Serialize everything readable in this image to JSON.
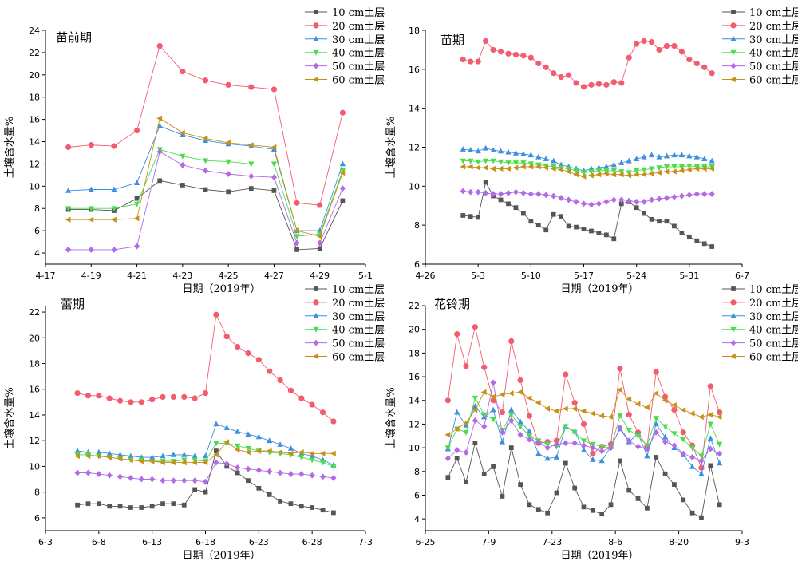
{
  "figure": {
    "series_names": [
      "10 cm土层",
      "20 cm土层",
      "30 cm土层",
      "40 cm土层",
      "50 cm土层",
      "60 cm土层"
    ],
    "series_colors": [
      "#555555",
      "#f25c70",
      "#3d8fe0",
      "#49dd49",
      "#b36ae6",
      "#c79018"
    ],
    "series_markers": [
      "square",
      "circle",
      "triangle-up",
      "triangle-down",
      "diamond",
      "triangle-left"
    ],
    "xlabel": "日期（2019年）",
    "ylabel": "土壤含水量%"
  },
  "chart_data": [
    {
      "type": "line",
      "title": "苗前期",
      "x_ticks": [
        "4-17",
        "4-19",
        "4-21",
        "4-23",
        "4-25",
        "4-27",
        "4-29",
        "5-1"
      ],
      "y_ticks": [
        "4",
        "6",
        "8",
        "10",
        "12",
        "14",
        "16",
        "18",
        "20",
        "22",
        "24"
      ],
      "xlim": [
        0,
        14
      ],
      "ylim": [
        3,
        24
      ],
      "x": [
        1,
        2,
        3,
        4,
        5,
        6,
        7,
        8,
        9,
        10,
        11,
        12,
        13
      ],
      "series": [
        {
          "name": "10 cm土层",
          "values": [
            7.9,
            7.9,
            7.8,
            8.9,
            10.5,
            10.1,
            9.7,
            9.5,
            9.8,
            9.6,
            4.3,
            4.4,
            8.7
          ]
        },
        {
          "name": "20 cm土层",
          "values": [
            13.5,
            13.7,
            13.6,
            15.0,
            22.6,
            20.3,
            19.5,
            19.1,
            18.9,
            18.7,
            8.5,
            8.3,
            16.6
          ]
        },
        {
          "name": "30 cm土层",
          "values": [
            9.6,
            9.7,
            9.7,
            10.3,
            15.4,
            14.6,
            14.1,
            13.8,
            13.6,
            13.3,
            6.0,
            6.0,
            12.0
          ]
        },
        {
          "name": "40 cm土层",
          "values": [
            8.0,
            8.0,
            8.0,
            8.4,
            13.3,
            12.7,
            12.3,
            12.2,
            12.0,
            12.0,
            5.5,
            5.7,
            11.4
          ]
        },
        {
          "name": "50 cm土层",
          "values": [
            4.3,
            4.3,
            4.3,
            4.6,
            13.1,
            11.9,
            11.4,
            11.1,
            10.9,
            10.8,
            4.9,
            4.9,
            9.8
          ]
        },
        {
          "name": "60 cm土层",
          "values": [
            7.0,
            7.0,
            7.0,
            7.1,
            16.1,
            14.8,
            14.3,
            13.9,
            13.7,
            13.5,
            6.0,
            5.5,
            11.2
          ]
        }
      ]
    },
    {
      "type": "line",
      "title": "苗期",
      "x_ticks": [
        "4-26",
        "5-3",
        "5-10",
        "5-17",
        "5-24",
        "5-31",
        "6-7"
      ],
      "y_ticks": [
        "6",
        "8",
        "10",
        "12",
        "14",
        "16",
        "18"
      ],
      "xlim": [
        0,
        42
      ],
      "ylim": [
        6,
        18
      ],
      "x": [
        5,
        6,
        7,
        8,
        9,
        10,
        11,
        12,
        13,
        14,
        15,
        16,
        17,
        18,
        19,
        20,
        21,
        22,
        23,
        24,
        25,
        26,
        27,
        28,
        29,
        30,
        31,
        32,
        33,
        34,
        35,
        36,
        37,
        38
      ],
      "series": [
        {
          "name": "10 cm土层",
          "values": [
            8.5,
            8.45,
            8.4,
            10.2,
            9.5,
            9.3,
            9.1,
            8.9,
            8.6,
            8.2,
            8.0,
            7.75,
            8.55,
            8.45,
            7.95,
            7.9,
            7.8,
            7.7,
            7.6,
            7.5,
            7.3,
            9.1,
            9.2,
            8.9,
            8.6,
            8.3,
            8.2,
            8.2,
            7.95,
            7.6,
            7.4,
            7.2,
            7.05,
            6.9
          ]
        },
        {
          "name": "20 cm土层",
          "values": [
            16.5,
            16.4,
            16.4,
            17.45,
            17.0,
            16.9,
            16.8,
            16.75,
            16.7,
            16.6,
            16.3,
            16.1,
            15.8,
            15.6,
            15.7,
            15.3,
            15.1,
            15.2,
            15.25,
            15.2,
            15.35,
            15.3,
            16.6,
            17.3,
            17.45,
            17.4,
            17.0,
            17.2,
            17.2,
            16.9,
            16.5,
            16.3,
            16.1,
            15.8
          ]
        },
        {
          "name": "30 cm土层",
          "values": [
            11.9,
            11.85,
            11.8,
            11.95,
            11.85,
            11.8,
            11.75,
            11.7,
            11.65,
            11.6,
            11.5,
            11.4,
            11.3,
            11.1,
            11.0,
            10.9,
            10.8,
            10.9,
            10.95,
            11.0,
            11.1,
            11.2,
            11.3,
            11.4,
            11.5,
            11.6,
            11.5,
            11.55,
            11.6,
            11.6,
            11.55,
            11.5,
            11.4,
            11.3
          ]
        },
        {
          "name": "40 cm土层",
          "values": [
            11.3,
            11.3,
            11.25,
            11.3,
            11.3,
            11.25,
            11.2,
            11.2,
            11.2,
            11.15,
            11.1,
            11.05,
            11.0,
            10.95,
            10.9,
            10.8,
            10.7,
            10.75,
            10.8,
            10.8,
            10.8,
            10.75,
            10.7,
            10.8,
            10.85,
            10.9,
            10.95,
            11.0,
            11.0,
            11.0,
            11.05,
            11.0,
            11.0,
            11.0
          ]
        },
        {
          "name": "50 cm土层",
          "values": [
            9.75,
            9.7,
            9.7,
            9.65,
            9.6,
            9.6,
            9.65,
            9.7,
            9.65,
            9.6,
            9.6,
            9.55,
            9.5,
            9.4,
            9.3,
            9.2,
            9.1,
            9.05,
            9.1,
            9.2,
            9.3,
            9.3,
            9.25,
            9.2,
            9.2,
            9.3,
            9.35,
            9.4,
            9.45,
            9.5,
            9.55,
            9.6,
            9.6,
            9.6
          ]
        },
        {
          "name": "60 cm土层",
          "values": [
            11.0,
            11.0,
            10.95,
            10.95,
            10.9,
            10.9,
            10.9,
            10.95,
            11.0,
            11.0,
            11.0,
            10.95,
            10.9,
            10.85,
            10.75,
            10.6,
            10.5,
            10.55,
            10.6,
            10.65,
            10.6,
            10.6,
            10.55,
            10.6,
            10.6,
            10.65,
            10.7,
            10.75,
            10.75,
            10.8,
            10.85,
            10.9,
            10.9,
            10.9
          ]
        }
      ]
    },
    {
      "type": "line",
      "title": "蕾期",
      "x_ticks": [
        "6-3",
        "6-8",
        "6-13",
        "6-18",
        "6-23",
        "6-28",
        "7-3"
      ],
      "y_ticks": [
        "6",
        "8",
        "10",
        "12",
        "14",
        "16",
        "18",
        "20",
        "22"
      ],
      "xlim": [
        0,
        30
      ],
      "ylim": [
        5,
        22.5
      ],
      "x": [
        3,
        4,
        5,
        6,
        7,
        8,
        9,
        10,
        11,
        12,
        13,
        14,
        15,
        16,
        17,
        18,
        19,
        20,
        21,
        22,
        23,
        24,
        25,
        26,
        27
      ],
      "series": [
        {
          "name": "10 cm土层",
          "values": [
            7.0,
            7.1,
            7.1,
            6.9,
            6.9,
            6.8,
            6.8,
            6.9,
            7.1,
            7.1,
            7.0,
            8.2,
            8.0,
            11.2,
            10.0,
            9.5,
            8.9,
            8.3,
            7.8,
            7.3,
            7.1,
            6.9,
            6.8,
            6.6,
            6.4
          ]
        },
        {
          "name": "20 cm土层",
          "values": [
            15.7,
            15.5,
            15.5,
            15.3,
            15.1,
            15.0,
            15.0,
            15.2,
            15.4,
            15.4,
            15.4,
            15.3,
            15.7,
            21.8,
            20.1,
            19.3,
            18.8,
            18.3,
            17.4,
            16.7,
            15.9,
            15.3,
            14.8,
            14.2,
            13.5
          ]
        },
        {
          "name": "30 cm土层",
          "values": [
            11.2,
            11.1,
            11.1,
            11.0,
            10.9,
            10.8,
            10.7,
            10.7,
            10.8,
            10.9,
            10.9,
            10.8,
            10.8,
            13.3,
            13.0,
            12.7,
            12.5,
            12.3,
            12.0,
            11.7,
            11.4,
            11.0,
            10.8,
            10.5,
            10.1
          ]
        },
        {
          "name": "40 cm土层",
          "values": [
            10.9,
            10.9,
            10.8,
            10.7,
            10.6,
            10.5,
            10.5,
            10.4,
            10.4,
            10.4,
            10.5,
            10.5,
            10.4,
            11.8,
            11.8,
            11.6,
            11.4,
            11.2,
            11.1,
            11.0,
            10.9,
            10.7,
            10.5,
            10.3,
            10.0
          ]
        },
        {
          "name": "50 cm土层",
          "values": [
            9.5,
            9.5,
            9.4,
            9.3,
            9.2,
            9.1,
            9.0,
            9.0,
            8.9,
            8.9,
            8.9,
            8.9,
            8.8,
            10.3,
            10.2,
            9.9,
            9.8,
            9.7,
            9.6,
            9.5,
            9.4,
            9.4,
            9.3,
            9.2,
            9.1
          ]
        },
        {
          "name": "60 cm土层",
          "values": [
            10.8,
            10.8,
            10.8,
            10.7,
            10.6,
            10.5,
            10.4,
            10.4,
            10.3,
            10.3,
            10.3,
            10.3,
            10.3,
            10.9,
            11.9,
            11.3,
            11.1,
            11.2,
            11.2,
            11.1,
            11.0,
            11.1,
            11.0,
            11.0,
            11.0
          ]
        }
      ]
    },
    {
      "type": "line",
      "title": "花铃期",
      "x_ticks": [
        "6-25",
        "7-9",
        "7-23",
        "8-6",
        "8-20",
        "9-3"
      ],
      "y_ticks": [
        "4",
        "6",
        "8",
        "10",
        "12",
        "14",
        "16",
        "18",
        "20",
        "22"
      ],
      "xlim": [
        0,
        70
      ],
      "ylim": [
        3,
        22
      ],
      "x": [
        5,
        7,
        9,
        11,
        13,
        15,
        17,
        19,
        21,
        23,
        25,
        27,
        29,
        31,
        33,
        35,
        37,
        39,
        41,
        43,
        45,
        47,
        49,
        51,
        53,
        55,
        57,
        59,
        61,
        63,
        65
      ],
      "series": [
        {
          "name": "10 cm土层",
          "values": [
            7.5,
            9.1,
            7.1,
            10.4,
            7.8,
            8.4,
            5.9,
            10.0,
            6.9,
            5.2,
            4.8,
            4.5,
            6.2,
            8.7,
            6.6,
            5.0,
            4.7,
            4.4,
            5.2,
            8.9,
            6.4,
            5.7,
            4.9,
            9.2,
            7.8,
            6.9,
            5.6,
            4.5,
            4.1,
            8.5,
            5.2
          ]
        },
        {
          "name": "20 cm土层",
          "values": [
            14.0,
            19.6,
            16.9,
            20.2,
            16.8,
            14.0,
            13.0,
            19.0,
            15.7,
            12.7,
            10.4,
            10.5,
            10.6,
            16.2,
            13.8,
            12.0,
            9.5,
            10.1,
            10.3,
            16.7,
            12.8,
            11.3,
            10.1,
            16.4,
            14.3,
            13.2,
            11.3,
            10.2,
            8.3,
            15.2,
            13.0
          ]
        },
        {
          "name": "30 cm土层",
          "values": [
            9.9,
            13.0,
            11.9,
            13.5,
            12.6,
            13.2,
            10.5,
            13.2,
            12.2,
            11.4,
            9.5,
            9.1,
            9.2,
            11.8,
            11.4,
            9.8,
            9.0,
            8.9,
            10.1,
            11.6,
            10.5,
            11.2,
            9.3,
            12.0,
            10.9,
            10.0,
            9.4,
            8.4,
            7.8,
            10.8,
            8.7
          ]
        },
        {
          "name": "40 cm土层",
          "values": [
            10.0,
            11.6,
            11.3,
            14.2,
            12.8,
            12.4,
            11.5,
            12.8,
            11.8,
            11.0,
            10.6,
            10.3,
            10.1,
            11.8,
            11.3,
            10.6,
            10.3,
            10.1,
            10.0,
            12.7,
            11.5,
            11.0,
            10.2,
            12.5,
            11.8,
            11.2,
            10.7,
            10.0,
            9.3,
            12.0,
            10.3
          ]
        },
        {
          "name": "50 cm土层",
          "values": [
            9.1,
            9.8,
            9.6,
            12.3,
            11.8,
            15.5,
            11.3,
            12.3,
            11.1,
            10.7,
            10.5,
            10.0,
            10.3,
            10.4,
            10.4,
            10.2,
            10.0,
            9.7,
            10.0,
            11.7,
            10.6,
            10.1,
            9.9,
            11.3,
            10.5,
            10.2,
            9.5,
            9.2,
            8.9,
            9.9,
            9.5
          ]
        },
        {
          "name": "60 cm土层",
          "values": [
            11.1,
            11.6,
            12.1,
            13.2,
            14.7,
            14.3,
            14.5,
            14.6,
            14.7,
            14.2,
            13.8,
            13.3,
            13.1,
            13.3,
            13.3,
            13.1,
            12.9,
            12.7,
            12.6,
            14.9,
            14.1,
            13.7,
            13.4,
            14.6,
            14.0,
            13.6,
            13.2,
            12.9,
            12.6,
            12.8,
            12.6
          ]
        }
      ]
    }
  ]
}
